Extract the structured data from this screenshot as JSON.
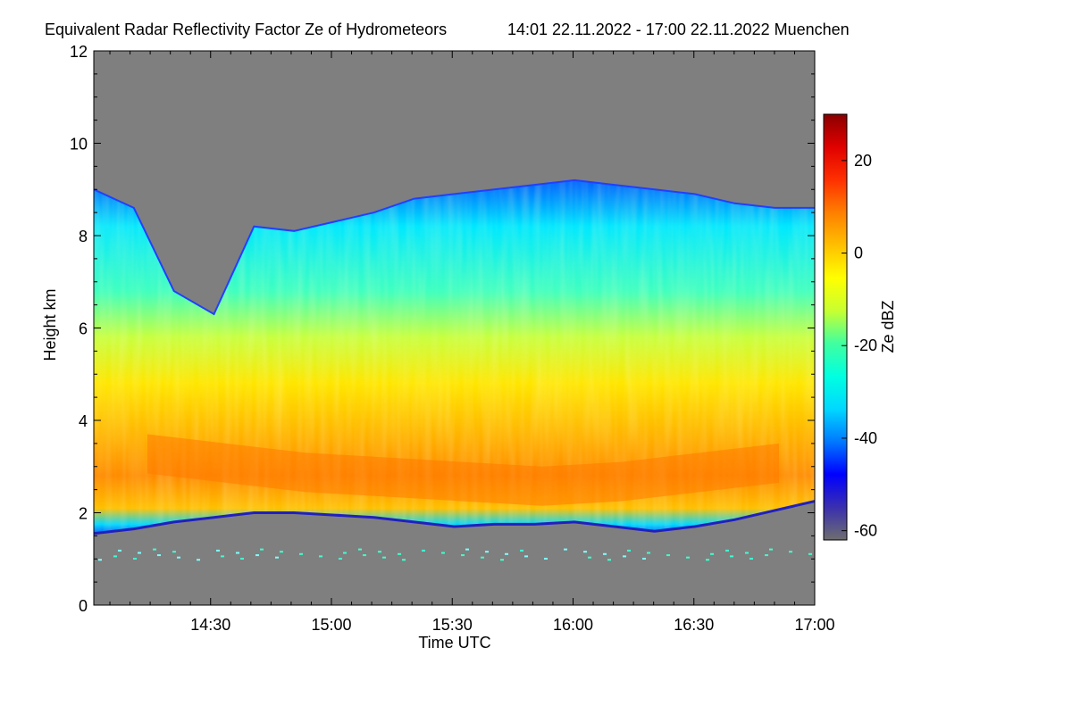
{
  "chart_data": {
    "type": "heatmap",
    "title": "Equivalent Radar Reflectivity Factor Ze of Hydrometeors",
    "subtitle": "14:01 22.11.2022 - 17:00 22.11.2022 Muenchen",
    "xlabel": "Time UTC",
    "ylabel": "Height km",
    "xlim": [
      "14:01",
      "17:00"
    ],
    "ylim": [
      0,
      12
    ],
    "x_ticks": [
      "14:30",
      "15:00",
      "15:30",
      "16:00",
      "16:30",
      "17:00"
    ],
    "y_ticks": [
      0,
      2,
      4,
      6,
      8,
      10,
      12
    ],
    "colorbar": {
      "label": "Ze dBZ",
      "range": [
        -62,
        30
      ],
      "ticks": [
        -60,
        -40,
        -20,
        0,
        20
      ],
      "colors": [
        "#6e6e6e",
        "#3a2fb0",
        "#0000ff",
        "#0078ff",
        "#00d8ff",
        "#00ffe0",
        "#40ffa0",
        "#c8ff30",
        "#ffff00",
        "#ffc000",
        "#ff7f00",
        "#ff3000",
        "#e00000",
        "#8b0000"
      ]
    },
    "no_data_color": "#7f7f7f",
    "grid": false,
    "features": {
      "cloud_base_km": [
        1.55,
        1.65,
        1.8,
        1.9,
        2.0,
        2.0,
        1.95,
        1.9,
        1.8,
        1.7,
        1.75,
        1.75,
        1.8,
        1.7,
        1.6,
        1.7,
        1.85,
        2.05,
        2.25
      ],
      "cloud_top_km": [
        9.0,
        8.6,
        6.8,
        6.3,
        8.2,
        8.1,
        8.3,
        8.5,
        8.8,
        8.9,
        9.0,
        9.1,
        9.2,
        9.1,
        9.0,
        8.9,
        8.7,
        8.6,
        8.6
      ],
      "core_max_dbz": 10,
      "core_height_km": [
        3.2,
        3.0,
        2.8,
        2.7,
        2.6,
        2.5,
        2.6,
        2.8,
        3.0
      ]
    }
  }
}
